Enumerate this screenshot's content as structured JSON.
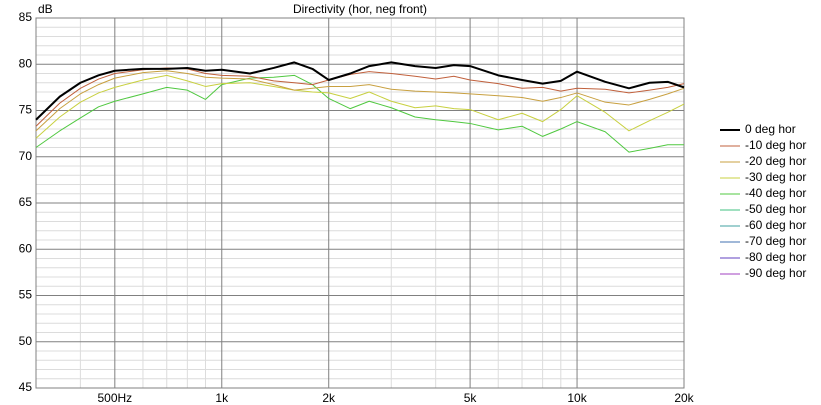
{
  "chart_data": {
    "type": "line",
    "title": "Directivity (hor, neg front)",
    "y_label": "dB",
    "log_x": true,
    "grid": true,
    "xlim": [
      300,
      20000
    ],
    "xticks": [
      {
        "value": 500,
        "label": "500Hz"
      },
      {
        "value": 1000,
        "label": "1k"
      },
      {
        "value": 2000,
        "label": "2k"
      },
      {
        "value": 5000,
        "label": "5k"
      },
      {
        "value": 10000,
        "label": "10k"
      },
      {
        "value": 20000,
        "label": "20k"
      }
    ],
    "xminorticks": [
      300,
      400,
      600,
      700,
      800,
      900,
      3000,
      4000,
      6000,
      7000,
      8000,
      9000
    ],
    "ylim": [
      45,
      85
    ],
    "yticks": [
      45,
      50,
      55,
      60,
      65,
      70,
      75,
      80,
      85
    ],
    "yminorticks": [
      46,
      47,
      48,
      49,
      51,
      52,
      53,
      54,
      56,
      57,
      58,
      59,
      61,
      62,
      63,
      64,
      66,
      67,
      68,
      69,
      71,
      72,
      73,
      74,
      76,
      77,
      78,
      79,
      81,
      82,
      83,
      84
    ],
    "legend": "right",
    "x": [
      300,
      350,
      400,
      450,
      500,
      600,
      700,
      800,
      900,
      1000,
      1200,
      1400,
      1600,
      1800,
      2000,
      2300,
      2600,
      3000,
      3500,
      4000,
      4500,
      5000,
      6000,
      7000,
      8000,
      9000,
      10000,
      12000,
      14000,
      16000,
      18000,
      20000
    ],
    "series": [
      {
        "name": "0 deg hor",
        "color": "#000000",
        "width": 2,
        "values": [
          74,
          76.5,
          78,
          78.8,
          79.3,
          79.5,
          79.5,
          79.6,
          79.3,
          79.4,
          79.0,
          79.6,
          80.2,
          79.5,
          78.3,
          79,
          79.8,
          80.2,
          79.8,
          79.6,
          79.9,
          79.8,
          78.8,
          78.3,
          77.9,
          78.2,
          79.2,
          78.1,
          77.4,
          78.0,
          78.1,
          77.5
        ]
      },
      {
        "name": "-10 deg hor",
        "color": "#c0603c",
        "width": 1,
        "values": [
          73.3,
          75.8,
          77.4,
          78.4,
          79,
          79.4,
          79.6,
          79.5,
          79,
          78.8,
          78.7,
          78.2,
          78,
          77.8,
          78.3,
          78.9,
          79.2,
          79,
          78.7,
          78.4,
          78.7,
          78.3,
          77.9,
          77.4,
          77.5,
          77.1,
          77.4,
          77.3,
          76.9,
          77.2,
          77.5,
          77.9
        ]
      },
      {
        "name": "-20 deg hor",
        "color": "#c8a040",
        "width": 1,
        "values": [
          72.8,
          75.2,
          76.8,
          77.8,
          78.5,
          79.1,
          79.3,
          79,
          78.6,
          78.5,
          78.4,
          77.8,
          77.2,
          77.4,
          77.6,
          77.6,
          77.8,
          77.3,
          77.1,
          77.0,
          76.9,
          76.8,
          76.6,
          76.4,
          76.0,
          76.4,
          76.9,
          75.9,
          75.6,
          76.2,
          76.8,
          77.4
        ]
      },
      {
        "name": "-30 deg hor",
        "color": "#c8d040",
        "width": 1,
        "values": [
          72.0,
          74.3,
          75.9,
          76.9,
          77.5,
          78.3,
          78.8,
          78.2,
          77.6,
          77.9,
          78.0,
          77.6,
          77.2,
          77.0,
          76.9,
          76.3,
          77.0,
          76.0,
          75.3,
          75.5,
          75.2,
          75.1,
          74.0,
          74.7,
          73.8,
          75.1,
          76.6,
          74.8,
          72.8,
          73.9,
          74.8,
          75.7
        ]
      },
      {
        "name": "-40 deg hor",
        "color": "#50c840",
        "width": 1,
        "values": [
          71.0,
          72.8,
          74.2,
          75.4,
          76.0,
          76.8,
          77.5,
          77.2,
          76.2,
          77.8,
          78.5,
          78.6,
          78.8,
          77.8,
          76.3,
          75.2,
          76.0,
          75.3,
          74.3,
          74.0,
          73.8,
          73.6,
          72.9,
          73.3,
          72.2,
          73.0,
          73.8,
          72.7,
          70.5,
          70.9,
          71.3,
          71.3
        ]
      },
      {
        "name": "-50 deg hor",
        "color": "#40c080",
        "width": 1,
        "values": [
          null,
          null,
          null,
          null,
          null,
          null,
          null,
          null,
          null,
          null,
          null,
          null,
          null,
          null,
          null,
          null,
          null,
          null,
          null,
          null,
          null,
          null,
          null,
          null,
          null,
          null,
          null,
          null,
          null,
          null,
          null,
          null
        ]
      },
      {
        "name": "-60 deg hor",
        "color": "#40a0a0",
        "width": 1,
        "values": [
          null,
          null,
          null,
          null,
          null,
          null,
          null,
          null,
          null,
          null,
          null,
          null,
          null,
          null,
          null,
          null,
          null,
          null,
          null,
          null,
          null,
          null,
          null,
          null,
          null,
          null,
          null,
          null,
          null,
          null,
          null,
          null
        ]
      },
      {
        "name": "-70 deg hor",
        "color": "#4070b0",
        "width": 1,
        "values": [
          null,
          null,
          null,
          null,
          null,
          null,
          null,
          null,
          null,
          null,
          null,
          null,
          null,
          null,
          null,
          null,
          null,
          null,
          null,
          null,
          null,
          null,
          null,
          null,
          null,
          null,
          null,
          null,
          null,
          null,
          null,
          null
        ]
      },
      {
        "name": "-80 deg hor",
        "color": "#6040c0",
        "width": 1,
        "values": [
          null,
          null,
          null,
          null,
          null,
          null,
          null,
          null,
          null,
          null,
          null,
          null,
          null,
          null,
          null,
          null,
          null,
          null,
          null,
          null,
          null,
          null,
          null,
          null,
          null,
          null,
          null,
          null,
          null,
          null,
          null,
          null
        ]
      },
      {
        "name": "-90 deg hor",
        "color": "#a040c0",
        "width": 1,
        "values": [
          null,
          null,
          null,
          null,
          null,
          null,
          null,
          null,
          null,
          null,
          null,
          null,
          null,
          null,
          null,
          null,
          null,
          null,
          null,
          null,
          null,
          null,
          null,
          null,
          null,
          null,
          null,
          null,
          null,
          null,
          null,
          null
        ]
      }
    ]
  }
}
